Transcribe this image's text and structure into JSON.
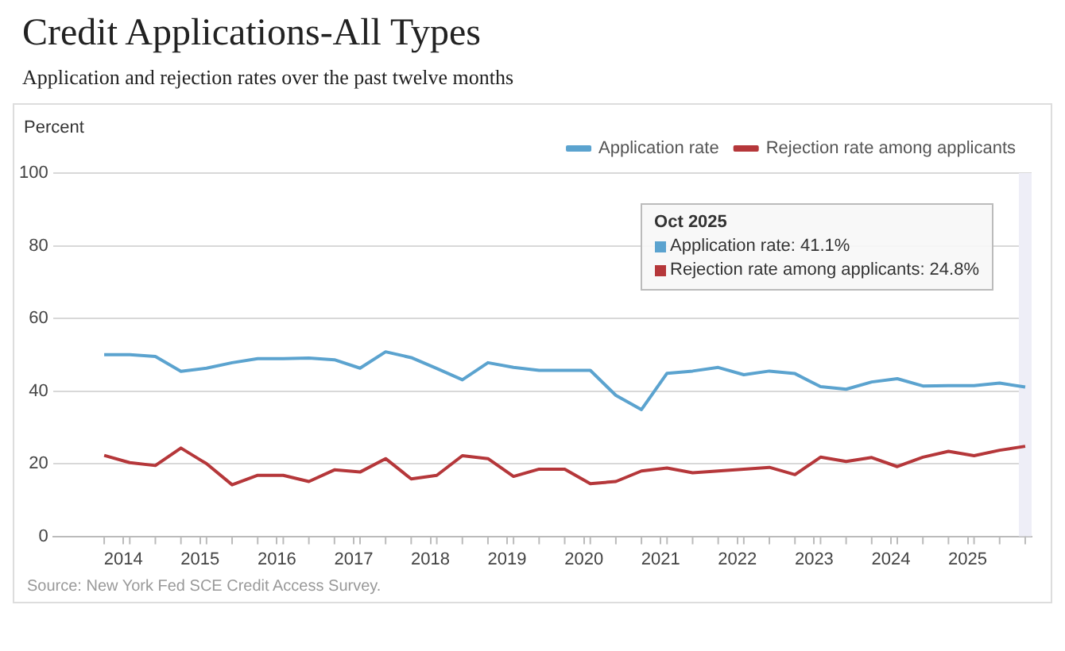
{
  "chart_data": {
    "type": "line",
    "title": "Credit Applications-All Types",
    "subtitle": "Application and rejection rates over the past twelve months",
    "ylabel": "Percent",
    "x": [
      "2013-10",
      "2014-02",
      "2014-06",
      "2014-10",
      "2015-02",
      "2015-06",
      "2015-10",
      "2016-02",
      "2016-06",
      "2016-10",
      "2017-02",
      "2017-06",
      "2017-10",
      "2018-02",
      "2018-06",
      "2018-10",
      "2019-02",
      "2019-06",
      "2019-10",
      "2020-02",
      "2020-06",
      "2020-10",
      "2021-02",
      "2021-06",
      "2021-10",
      "2022-02",
      "2022-06",
      "2022-10",
      "2023-02",
      "2023-06",
      "2023-10",
      "2024-02",
      "2024-06",
      "2024-10",
      "2025-02",
      "2025-06",
      "2025-10"
    ],
    "series": [
      {
        "name": "Application rate",
        "color": "#5ba3cf",
        "values": [
          50.0,
          50.0,
          49.5,
          45.4,
          46.3,
          47.8,
          48.9,
          48.9,
          49.1,
          48.6,
          46.3,
          50.8,
          49.2,
          46.2,
          43.1,
          47.8,
          46.5,
          45.7,
          45.7,
          45.7,
          38.8,
          34.9,
          44.9,
          45.5,
          46.5,
          44.5,
          45.5,
          44.8,
          41.2,
          40.5,
          42.5,
          43.4,
          41.4,
          41.5,
          41.5,
          42.2,
          41.1
        ]
      },
      {
        "name": "Rejection rate among applicants",
        "color": "#b5373a",
        "values": [
          22.3,
          20.3,
          19.5,
          24.3,
          20.0,
          14.2,
          16.8,
          16.8,
          15.1,
          18.3,
          17.7,
          21.4,
          15.8,
          16.8,
          22.2,
          21.4,
          16.5,
          18.5,
          18.5,
          14.5,
          15.1,
          18.0,
          18.8,
          17.5,
          18.0,
          18.5,
          19.0,
          17.0,
          21.8,
          20.6,
          21.7,
          19.2,
          21.8,
          23.4,
          22.2,
          23.7,
          24.8
        ]
      }
    ],
    "xlim": [
      "2013-02",
      "2025-11"
    ],
    "xticks": [
      "2014",
      "2015",
      "2016",
      "2017",
      "2018",
      "2019",
      "2020",
      "2021",
      "2022",
      "2023",
      "2024",
      "2025"
    ],
    "ylim": [
      0,
      100
    ],
    "yticks": [
      0,
      20,
      40,
      60,
      80,
      100
    ],
    "grid": "y",
    "legend": "top right",
    "marker": "none",
    "line_style": "solid",
    "bands": [
      {
        "axis": "x",
        "from": "2025-09",
        "to": "2025-11",
        "color": "#eeeef7"
      }
    ],
    "annotations": [
      "Oct 2025",
      "Application rate: 41.1%",
      "Rejection rate among applicants: 24.8%",
      "Source: New York Fed SCE Credit Access Survey."
    ]
  }
}
